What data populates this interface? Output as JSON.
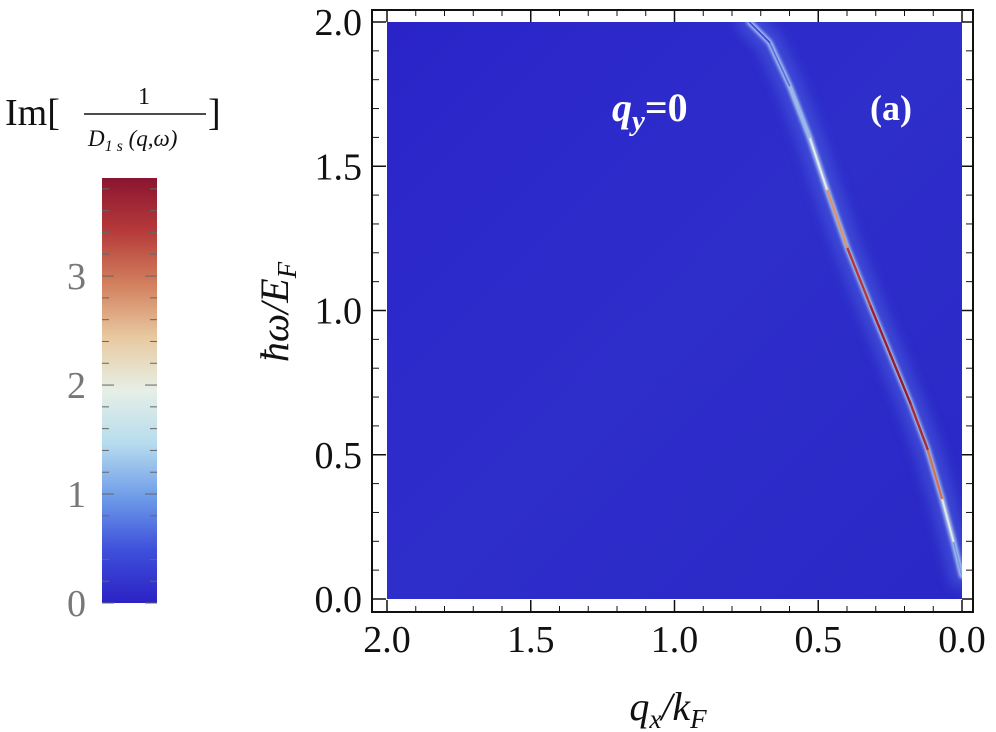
{
  "chart_data": {
    "type": "heatmap",
    "panel_label": "(a)",
    "annotation": {
      "main": "q",
      "sub": "y",
      "rest": "=0"
    },
    "xlabel": {
      "main": "q",
      "sub": "x",
      "mid": "/k",
      "sub2": "F"
    },
    "ylabel": {
      "main": "ħω/E",
      "sub": "F"
    },
    "x_axis": {
      "range": [
        2.0,
        0.0
      ],
      "reversed": true,
      "ticks": [
        2.0,
        1.5,
        1.0,
        0.5,
        0.0
      ],
      "tick_labels": [
        "2.0",
        "1.5",
        "1.0",
        "0.5",
        "0.0"
      ]
    },
    "y_axis": {
      "range": [
        0.0,
        2.0
      ],
      "ticks": [
        0.0,
        0.5,
        1.0,
        1.5,
        2.0
      ],
      "tick_labels": [
        "0.0",
        "0.5",
        "1.0",
        "1.5",
        "2.0"
      ]
    },
    "background_level": 0.05,
    "ridge": {
      "description_points_qx": [
        0.0,
        0.03,
        0.07,
        0.12,
        0.18,
        0.25,
        0.32,
        0.4,
        0.47,
        0.53,
        0.6,
        0.67,
        0.74
      ],
      "description_points_omega": [
        0.08,
        0.2,
        0.35,
        0.52,
        0.68,
        0.85,
        1.02,
        1.22,
        1.42,
        1.6,
        1.78,
        1.93,
        2.0
      ],
      "peak_values": [
        0.6,
        1.4,
        2.6,
        3.4,
        3.8,
        3.8,
        3.7,
        3.2,
        2.4,
        1.5,
        0.9,
        0.5,
        0.3
      ]
    },
    "colorbar": {
      "title_prefix": "Im[",
      "title_numerator": "1",
      "title_denominator": {
        "main": "D",
        "sub": "1 s",
        "rest": " (q,ω)"
      },
      "title_suffix": "]",
      "range": [
        0,
        3.9
      ],
      "ticks": [
        0,
        1,
        2,
        3
      ],
      "tick_labels": [
        "0",
        "1",
        "2",
        "3"
      ],
      "colors": [
        "#2c22c4",
        "#3e50dc",
        "#6f9ce8",
        "#b6dcee",
        "#e6efe6",
        "#e8c9a0",
        "#d2805e",
        "#b63a3a",
        "#8b1530"
      ]
    }
  }
}
